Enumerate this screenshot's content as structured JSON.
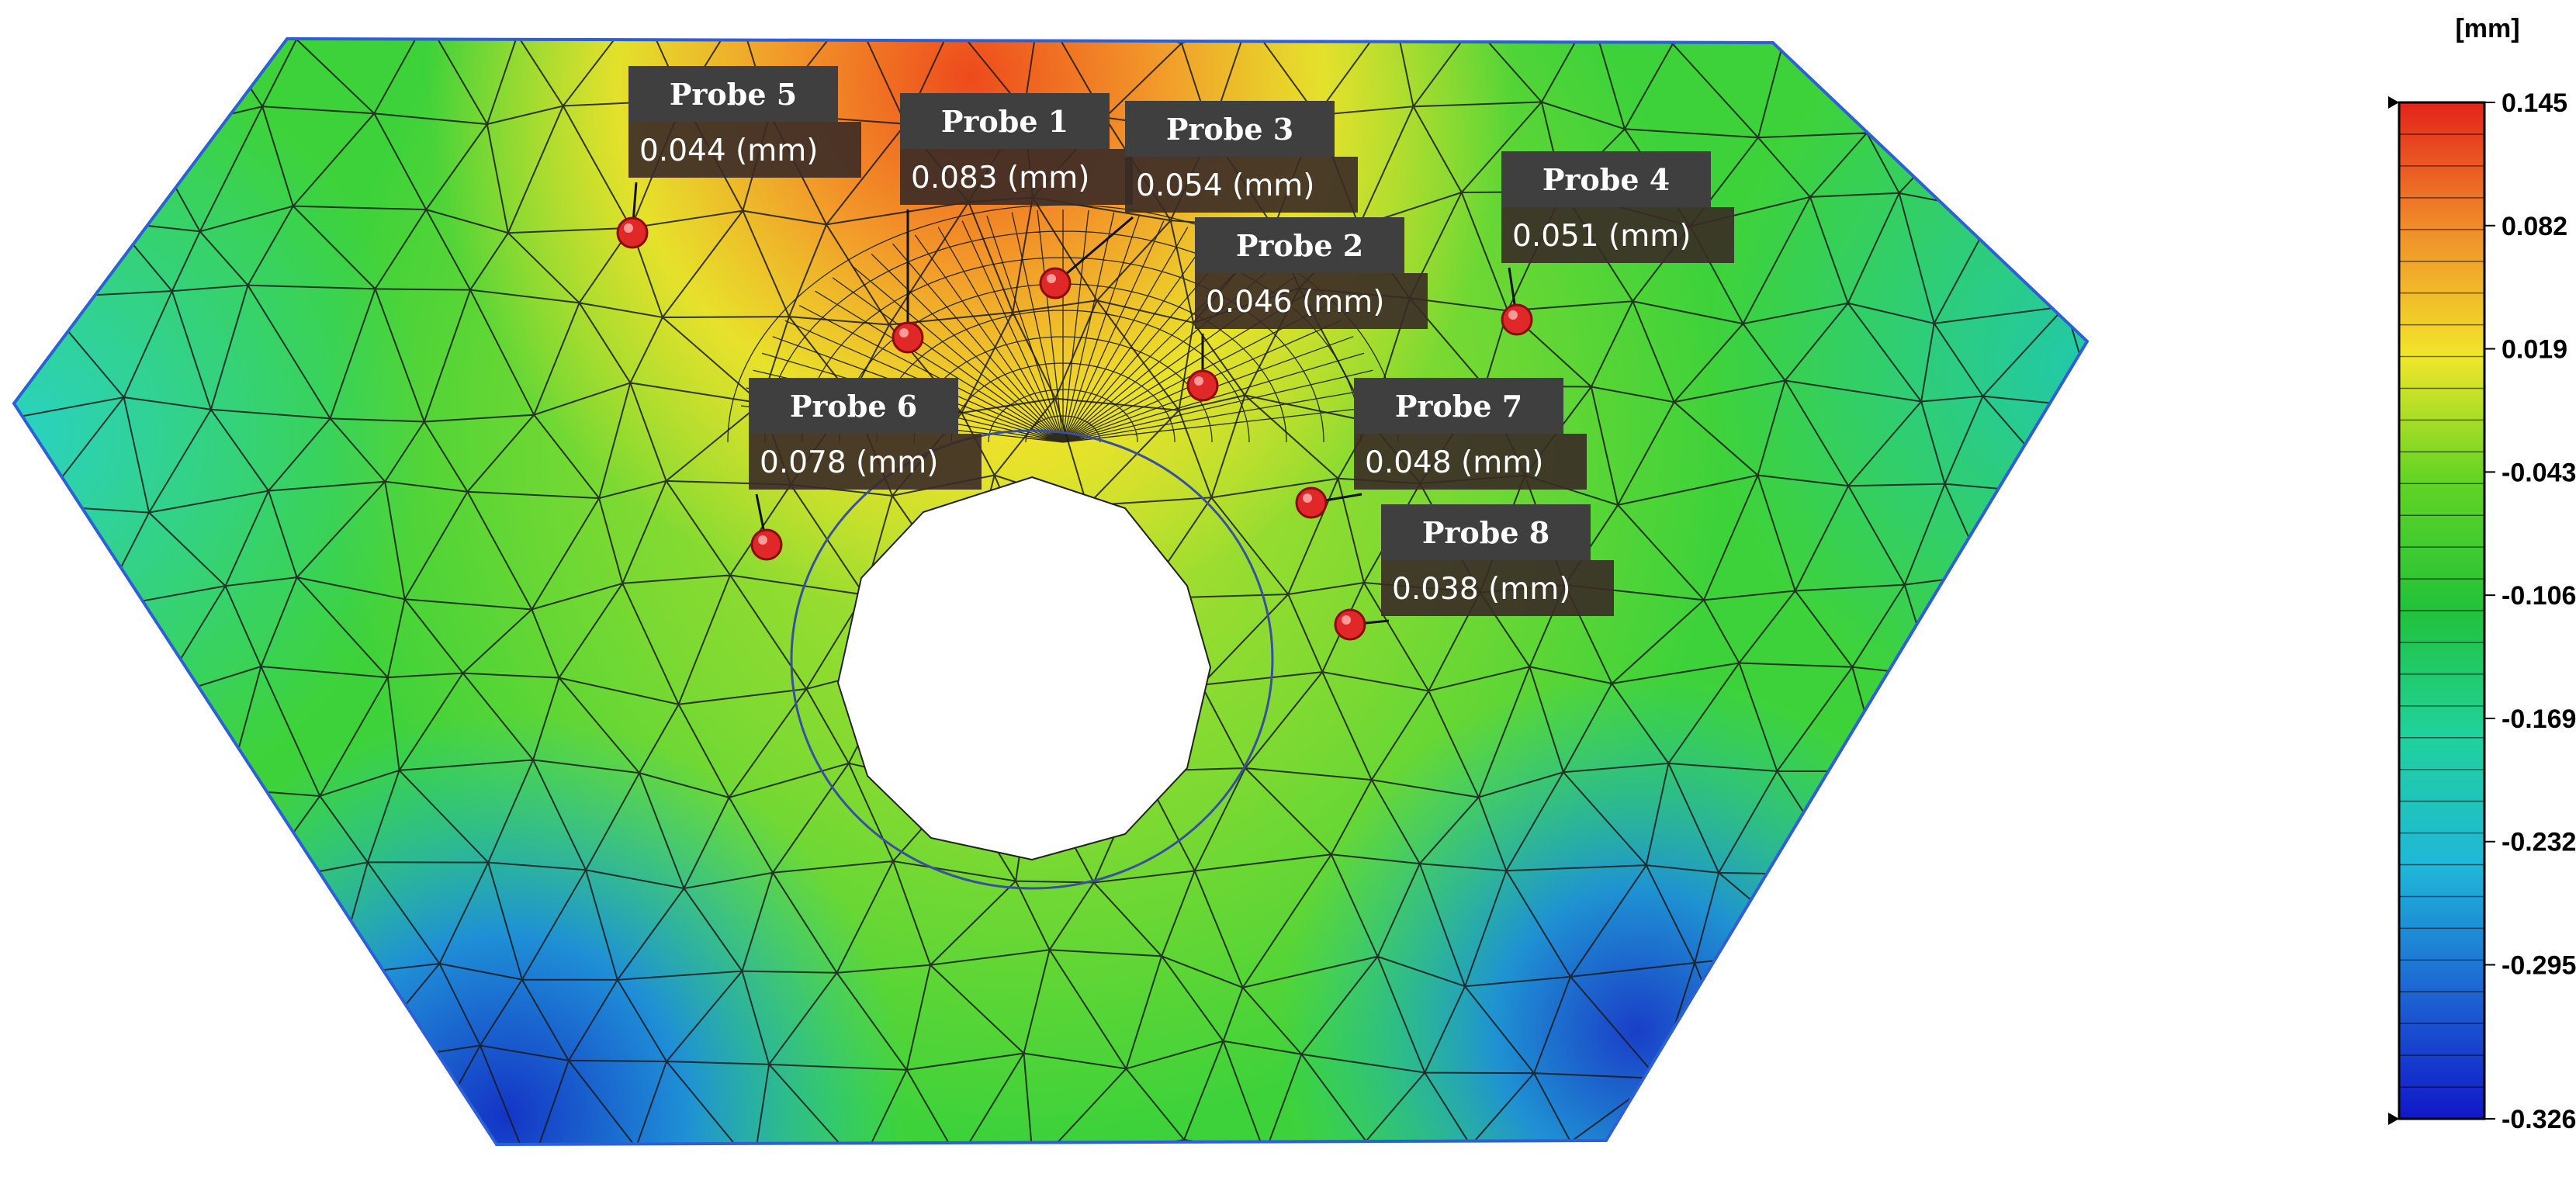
{
  "legend": {
    "unit": "[mm]",
    "ticks": [
      "0.145",
      "0.082",
      "0.019",
      "-0.043",
      "-0.106",
      "-0.169",
      "-0.232",
      "-0.295",
      "-0.326"
    ],
    "colors": [
      "#e4231b",
      "#f08a2a",
      "#f2e62a",
      "#64d424",
      "#21c23a",
      "#20d29a",
      "#1fb8d8",
      "#1d62d2",
      "#1018c8"
    ]
  },
  "probes": [
    {
      "label": "Probe 1",
      "value": "0.083 (mm)"
    },
    {
      "label": "Probe 2",
      "value": "0.046 (mm)"
    },
    {
      "label": "Probe 3",
      "value": "0.054 (mm)"
    },
    {
      "label": "Probe 4",
      "value": "0.051 (mm)"
    },
    {
      "label": "Probe 5",
      "value": "0.044 (mm)"
    },
    {
      "label": "Probe 6",
      "value": "0.078 (mm)"
    },
    {
      "label": "Probe 7",
      "value": "0.048 (mm)"
    },
    {
      "label": "Probe 8",
      "value": "0.038 (mm)"
    }
  ]
}
